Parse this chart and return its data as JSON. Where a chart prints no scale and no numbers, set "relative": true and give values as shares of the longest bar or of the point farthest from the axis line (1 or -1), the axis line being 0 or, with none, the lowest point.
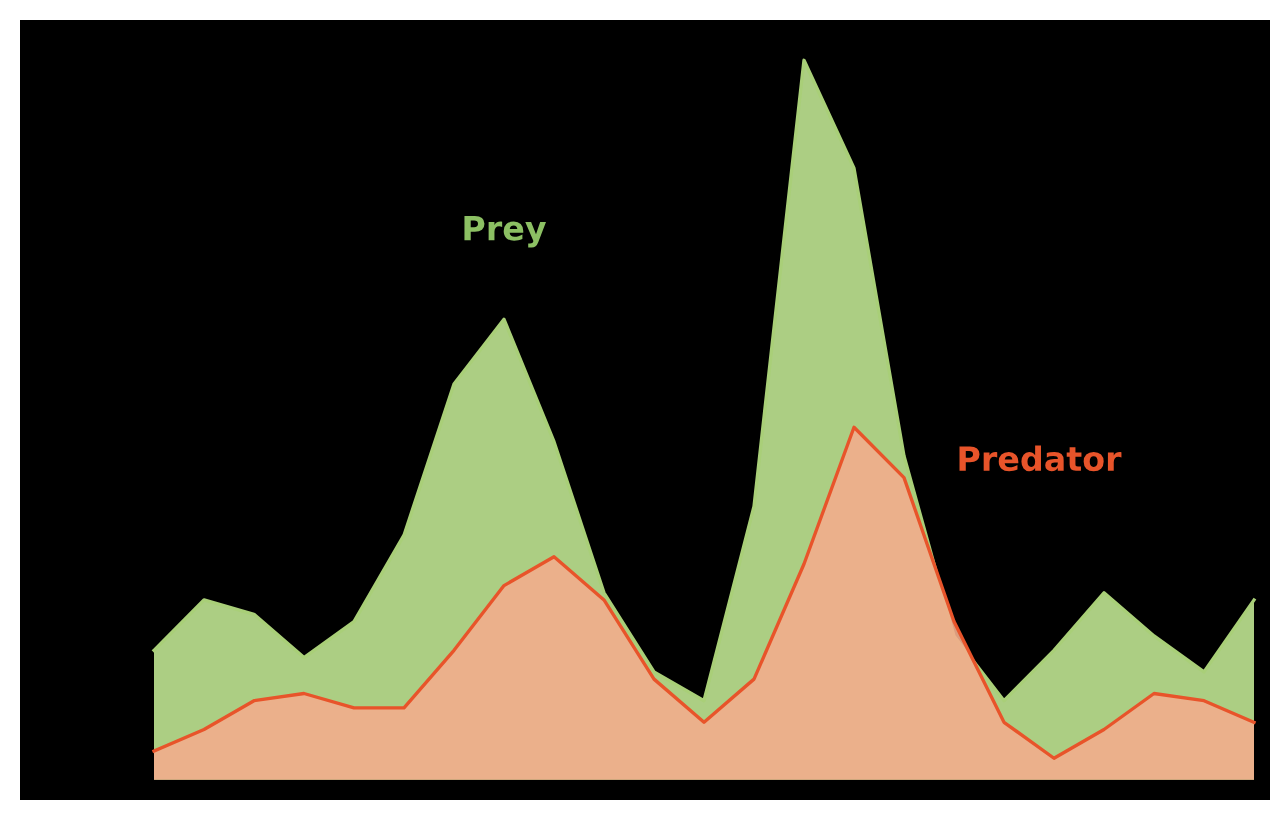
{
  "chart_data": {
    "type": "area",
    "relative": true,
    "legend": false,
    "categories": [
      null,
      null,
      null,
      null,
      null,
      null,
      null,
      null,
      null,
      null,
      null,
      null,
      null,
      null,
      null,
      null,
      null,
      null,
      null,
      null,
      null,
      null,
      null
    ],
    "series": [
      {
        "name": "Prey",
        "color": "#b5d98a",
        "values": [
          0.18,
          0.25,
          0.23,
          0.17,
          0.22,
          0.34,
          0.55,
          0.64,
          0.47,
          0.26,
          0.15,
          0.11,
          0.38,
          1.0,
          0.85,
          0.45,
          0.2,
          0.11,
          0.18,
          0.26,
          0.2,
          0.15,
          0.25
        ]
      },
      {
        "name": "Predator",
        "color": "#f2ad8c",
        "values": [
          0.04,
          0.07,
          0.11,
          0.12,
          0.1,
          0.1,
          0.18,
          0.27,
          0.31,
          0.25,
          0.14,
          0.08,
          0.14,
          0.3,
          0.49,
          0.42,
          0.22,
          0.08,
          0.03,
          0.07,
          0.12,
          0.11,
          0.08
        ]
      }
    ]
  }
}
